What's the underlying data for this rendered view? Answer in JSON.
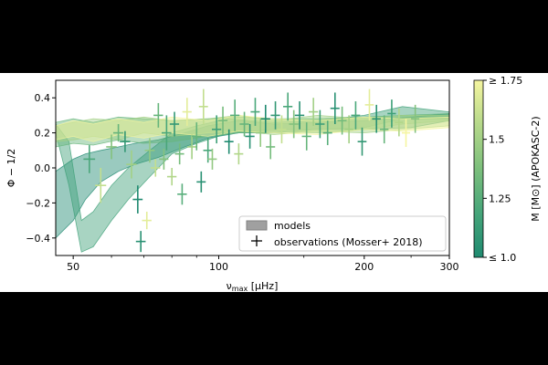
{
  "chart_data": {
    "type": "scatter",
    "xscale": "log",
    "xlim": [
      46,
      300
    ],
    "ylim": [
      -0.5,
      0.5
    ],
    "xticks": [
      50,
      100,
      200,
      300
    ],
    "xtick_labels": [
      "50",
      "100",
      "200",
      "300"
    ],
    "yticks": [
      -0.4,
      -0.2,
      0.0,
      0.2,
      0.4
    ],
    "ytick_labels": [
      "−0.4",
      "−0.2",
      "0.0",
      "0.2",
      "0.4"
    ],
    "xlabel": "νmax [μHz]",
    "xlabel_main": "ν",
    "xlabel_sub": "max",
    "xlabel_unit": " [μHz]",
    "ylabel": "Φ − 1/2",
    "legend": {
      "position": "lower-right",
      "models_label": "models",
      "observations_label": "observations (Mosser+ 2018)"
    },
    "colorbar": {
      "label": "M [M⊙] (APOKASC-2)",
      "range": [
        1.0,
        1.75
      ],
      "ticks": [
        1.0,
        1.25,
        1.5,
        1.75
      ],
      "tick_labels": [
        "≤ 1.0",
        "1.25",
        "1.5",
        "≥ 1.75"
      ],
      "colors": [
        "#1f8a70",
        "#46a57a",
        "#7cbf7c",
        "#b5d88a",
        "#f5f5a0"
      ]
    },
    "model_bands": [
      {
        "mass": 1.0,
        "x": [
          46,
          50,
          53,
          57,
          62,
          67,
          75,
          85,
          95,
          110,
          130,
          160,
          200,
          250,
          300
        ],
        "y_low": [
          -0.4,
          -0.3,
          -0.18,
          -0.08,
          -0.02,
          0.02,
          0.06,
          0.12,
          0.17,
          0.2,
          0.2,
          0.22,
          0.22,
          0.23,
          0.27
        ],
        "y_high": [
          -0.02,
          0.05,
          0.08,
          0.1,
          0.12,
          0.14,
          0.16,
          0.2,
          0.24,
          0.27,
          0.25,
          0.26,
          0.27,
          0.29,
          0.31
        ]
      },
      {
        "mass": 1.15,
        "x": [
          46,
          49,
          52,
          55,
          60,
          65,
          72,
          80,
          90,
          105,
          130,
          160,
          200,
          240,
          300
        ],
        "y_low": [
          0.2,
          -0.1,
          -0.48,
          -0.45,
          -0.3,
          -0.18,
          -0.05,
          0.08,
          0.14,
          0.2,
          0.22,
          0.22,
          0.23,
          0.28,
          0.28
        ],
        "y_high": [
          0.25,
          0.15,
          -0.3,
          -0.25,
          -0.1,
          0.0,
          0.1,
          0.2,
          0.24,
          0.28,
          0.26,
          0.27,
          0.3,
          0.35,
          0.32
        ]
      },
      {
        "mass": 1.3,
        "x": [
          46,
          50,
          55,
          62,
          70,
          80,
          95,
          110,
          130,
          160,
          200,
          240,
          300
        ],
        "y_low": [
          0.12,
          0.14,
          0.13,
          0.16,
          0.14,
          0.15,
          0.18,
          0.2,
          0.21,
          0.2,
          0.22,
          0.25,
          0.27
        ],
        "y_high": [
          0.26,
          0.28,
          0.26,
          0.29,
          0.28,
          0.27,
          0.28,
          0.29,
          0.28,
          0.28,
          0.29,
          0.3,
          0.31
        ]
      },
      {
        "mass": 1.5,
        "x": [
          46,
          50,
          55,
          62,
          70,
          80,
          95,
          110,
          130,
          160,
          200,
          240,
          300
        ],
        "y_low": [
          0.15,
          0.16,
          0.18,
          0.16,
          0.2,
          0.18,
          0.2,
          0.21,
          0.19,
          0.21,
          0.2,
          0.22,
          0.24
        ],
        "y_high": [
          0.24,
          0.26,
          0.28,
          0.27,
          0.29,
          0.27,
          0.28,
          0.3,
          0.27,
          0.3,
          0.28,
          0.3,
          0.3
        ]
      },
      {
        "mass": 1.75,
        "x": [
          46,
          50,
          55,
          62,
          70,
          80,
          95,
          110,
          130,
          160,
          200,
          240,
          300
        ],
        "y_low": [
          0.16,
          0.18,
          0.15,
          0.19,
          0.17,
          0.2,
          0.18,
          0.21,
          0.2,
          0.19,
          0.22,
          0.21,
          0.23
        ],
        "y_high": [
          0.24,
          0.27,
          0.25,
          0.28,
          0.26,
          0.29,
          0.27,
          0.3,
          0.28,
          0.27,
          0.29,
          0.28,
          0.29
        ]
      }
    ],
    "observations": [
      {
        "x": 54,
        "y": 0.05,
        "xerr": 1.5,
        "yerr": 0.08,
        "m": 1.2
      },
      {
        "x": 57,
        "y": -0.1,
        "xerr": 1.5,
        "yerr": 0.1,
        "m": 1.6
      },
      {
        "x": 60,
        "y": 0.12,
        "xerr": 1.5,
        "yerr": 0.07,
        "m": 1.4
      },
      {
        "x": 62,
        "y": 0.2,
        "xerr": 1.5,
        "yerr": 0.05,
        "m": 1.3
      },
      {
        "x": 64,
        "y": 0.15,
        "xerr": 1.6,
        "yerr": 0.06,
        "m": 1.1
      },
      {
        "x": 66,
        "y": 0.02,
        "xerr": 1.6,
        "yerr": 0.08,
        "m": 1.5
      },
      {
        "x": 68,
        "y": -0.18,
        "xerr": 1.6,
        "yerr": 0.08,
        "m": 1.0
      },
      {
        "x": 69,
        "y": -0.42,
        "xerr": 1.6,
        "yerr": 0.06,
        "m": 1.05
      },
      {
        "x": 71,
        "y": -0.3,
        "xerr": 1.6,
        "yerr": 0.05,
        "m": 1.7
      },
      {
        "x": 72,
        "y": 0.1,
        "xerr": 1.7,
        "yerr": 0.07,
        "m": 1.45
      },
      {
        "x": 74,
        "y": 0.0,
        "xerr": 1.7,
        "yerr": 0.05,
        "m": 1.6
      },
      {
        "x": 75,
        "y": 0.3,
        "xerr": 1.7,
        "yerr": 0.07,
        "m": 1.3
      },
      {
        "x": 77,
        "y": 0.05,
        "xerr": 1.7,
        "yerr": 0.06,
        "m": 1.4
      },
      {
        "x": 78,
        "y": 0.2,
        "xerr": 1.8,
        "yerr": 0.1,
        "m": 1.2
      },
      {
        "x": 80,
        "y": -0.05,
        "xerr": 1.8,
        "yerr": 0.05,
        "m": 1.55
      },
      {
        "x": 81,
        "y": 0.25,
        "xerr": 1.8,
        "yerr": 0.07,
        "m": 1.1
      },
      {
        "x": 83,
        "y": 0.08,
        "xerr": 1.8,
        "yerr": 0.06,
        "m": 1.35
      },
      {
        "x": 84,
        "y": -0.15,
        "xerr": 1.9,
        "yerr": 0.06,
        "m": 1.25
      },
      {
        "x": 86,
        "y": 0.32,
        "xerr": 1.9,
        "yerr": 0.08,
        "m": 1.7
      },
      {
        "x": 88,
        "y": 0.12,
        "xerr": 1.9,
        "yerr": 0.07,
        "m": 1.5
      },
      {
        "x": 90,
        "y": 0.18,
        "xerr": 2.0,
        "yerr": 0.08,
        "m": 1.3
      },
      {
        "x": 92,
        "y": -0.08,
        "xerr": 2.0,
        "yerr": 0.06,
        "m": 1.05
      },
      {
        "x": 93,
        "y": 0.35,
        "xerr": 2.0,
        "yerr": 0.1,
        "m": 1.6
      },
      {
        "x": 95,
        "y": 0.1,
        "xerr": 2.1,
        "yerr": 0.07,
        "m": 1.2
      },
      {
        "x": 97,
        "y": 0.05,
        "xerr": 2.1,
        "yerr": 0.06,
        "m": 1.45
      },
      {
        "x": 99,
        "y": 0.22,
        "xerr": 2.2,
        "yerr": 0.08,
        "m": 1.15
      },
      {
        "x": 102,
        "y": 0.27,
        "xerr": 2.3,
        "yerr": 0.08,
        "m": 1.35
      },
      {
        "x": 105,
        "y": 0.15,
        "xerr": 2.3,
        "yerr": 0.07,
        "m": 1.0
      },
      {
        "x": 108,
        "y": 0.3,
        "xerr": 2.4,
        "yerr": 0.09,
        "m": 1.25
      },
      {
        "x": 110,
        "y": 0.08,
        "xerr": 2.4,
        "yerr": 0.06,
        "m": 1.55
      },
      {
        "x": 113,
        "y": 0.25,
        "xerr": 2.5,
        "yerr": 0.07,
        "m": 1.3
      },
      {
        "x": 116,
        "y": 0.18,
        "xerr": 2.6,
        "yerr": 0.07,
        "m": 1.05
      },
      {
        "x": 119,
        "y": 0.32,
        "xerr": 2.6,
        "yerr": 0.08,
        "m": 1.2
      },
      {
        "x": 122,
        "y": 0.2,
        "xerr": 2.7,
        "yerr": 0.08,
        "m": 1.45
      },
      {
        "x": 125,
        "y": 0.28,
        "xerr": 2.8,
        "yerr": 0.08,
        "m": 1.0
      },
      {
        "x": 128,
        "y": 0.12,
        "xerr": 2.8,
        "yerr": 0.07,
        "m": 1.35
      },
      {
        "x": 131,
        "y": 0.3,
        "xerr": 2.9,
        "yerr": 0.08,
        "m": 1.1
      },
      {
        "x": 135,
        "y": 0.22,
        "xerr": 3.0,
        "yerr": 0.08,
        "m": 1.6
      },
      {
        "x": 139,
        "y": 0.35,
        "xerr": 3.1,
        "yerr": 0.08,
        "m": 1.2
      },
      {
        "x": 143,
        "y": 0.25,
        "xerr": 3.2,
        "yerr": 0.08,
        "m": 1.4
      },
      {
        "x": 147,
        "y": 0.3,
        "xerr": 3.3,
        "yerr": 0.08,
        "m": 1.05
      },
      {
        "x": 152,
        "y": 0.18,
        "xerr": 3.4,
        "yerr": 0.08,
        "m": 1.3
      },
      {
        "x": 157,
        "y": 0.32,
        "xerr": 3.5,
        "yerr": 0.08,
        "m": 1.5
      },
      {
        "x": 162,
        "y": 0.25,
        "xerr": 3.6,
        "yerr": 0.08,
        "m": 1.15
      },
      {
        "x": 168,
        "y": 0.2,
        "xerr": 3.7,
        "yerr": 0.07,
        "m": 1.25
      },
      {
        "x": 174,
        "y": 0.34,
        "xerr": 3.8,
        "yerr": 0.09,
        "m": 1.05
      },
      {
        "x": 180,
        "y": 0.27,
        "xerr": 3.9,
        "yerr": 0.08,
        "m": 1.35
      },
      {
        "x": 186,
        "y": 0.22,
        "xerr": 4.0,
        "yerr": 0.08,
        "m": 1.5
      },
      {
        "x": 192,
        "y": 0.3,
        "xerr": 4.1,
        "yerr": 0.08,
        "m": 1.2
      },
      {
        "x": 198,
        "y": 0.15,
        "xerr": 4.2,
        "yerr": 0.08,
        "m": 1.1
      },
      {
        "x": 205,
        "y": 0.36,
        "xerr": 4.3,
        "yerr": 0.09,
        "m": 1.7
      },
      {
        "x": 212,
        "y": 0.28,
        "xerr": 4.4,
        "yerr": 0.08,
        "m": 1.05
      },
      {
        "x": 220,
        "y": 0.22,
        "xerr": 4.5,
        "yerr": 0.08,
        "m": 1.3
      },
      {
        "x": 228,
        "y": 0.31,
        "xerr": 4.6,
        "yerr": 0.08,
        "m": 1.15
      },
      {
        "x": 236,
        "y": 0.26,
        "xerr": 4.7,
        "yerr": 0.08,
        "m": 1.55
      },
      {
        "x": 244,
        "y": 0.2,
        "xerr": 4.8,
        "yerr": 0.08,
        "m": 1.75
      },
      {
        "x": 255,
        "y": 0.28,
        "xerr": 5.0,
        "yerr": 0.08,
        "m": 1.4
      }
    ]
  }
}
